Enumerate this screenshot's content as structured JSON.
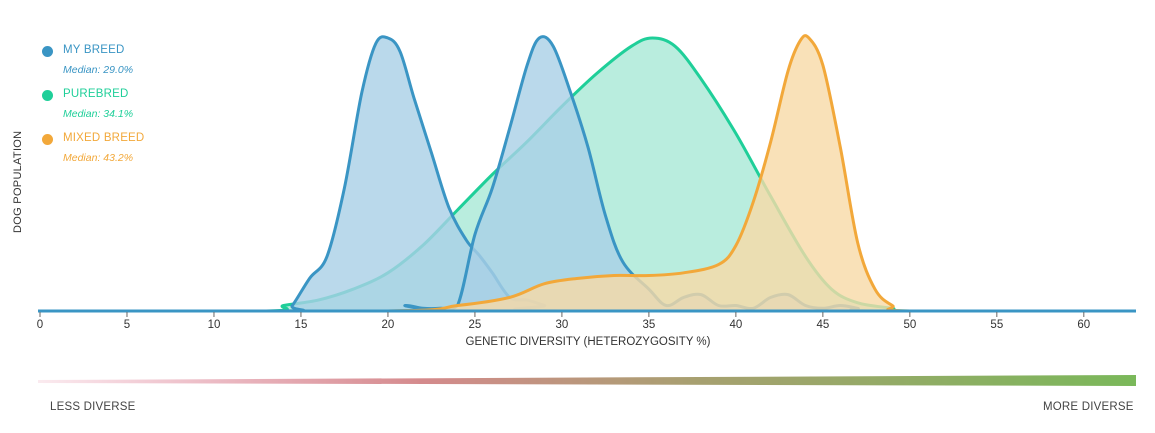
{
  "chart_data": {
    "type": "area",
    "title": "",
    "xlabel": "GENETIC DIVERSITY (HETEROZYGOSITY %)",
    "ylabel": "DOG POPULATION",
    "xlim": [
      0,
      63
    ],
    "x_ticks": [
      "0",
      "5",
      "10",
      "15",
      "20",
      "25",
      "30",
      "35",
      "40",
      "45",
      "50",
      "55",
      "60"
    ],
    "legend_position": "top-left",
    "series": [
      {
        "name": "PUREBRED",
        "median_label": "Median: 34.1%",
        "color": "#1fcf99",
        "fill": "#a8e9d6",
        "points": [
          [
            0,
            0
          ],
          [
            13,
            0
          ],
          [
            14,
            0.02
          ],
          [
            16,
            0.04
          ],
          [
            18,
            0.08
          ],
          [
            20,
            0.14
          ],
          [
            22,
            0.24
          ],
          [
            24,
            0.37
          ],
          [
            26,
            0.5
          ],
          [
            28,
            0.62
          ],
          [
            30,
            0.75
          ],
          [
            32,
            0.87
          ],
          [
            34,
            0.97
          ],
          [
            35.2,
            1.0
          ],
          [
            36.5,
            0.97
          ],
          [
            38,
            0.85
          ],
          [
            40,
            0.65
          ],
          [
            42,
            0.42
          ],
          [
            44,
            0.2
          ],
          [
            45.5,
            0.08
          ],
          [
            47,
            0.03
          ],
          [
            49,
            0.01
          ],
          [
            50,
            0
          ],
          [
            63,
            0
          ]
        ]
      },
      {
        "name": "MY BREED",
        "median_label": "Median: 29.0%",
        "color": "#3a95c4",
        "fill": "#a9cfe6",
        "points": [
          [
            0,
            0
          ],
          [
            14,
            0
          ],
          [
            14.5,
            0.02
          ],
          [
            15.5,
            0.12
          ],
          [
            16.5,
            0.2
          ],
          [
            17.5,
            0.45
          ],
          [
            18.5,
            0.8
          ],
          [
            19.3,
            0.98
          ],
          [
            20,
            1.0
          ],
          [
            20.7,
            0.95
          ],
          [
            21.5,
            0.78
          ],
          [
            22.5,
            0.58
          ],
          [
            23.5,
            0.38
          ],
          [
            24.5,
            0.26
          ],
          [
            25.3,
            0.2
          ],
          [
            26,
            0.14
          ],
          [
            27,
            0.05
          ],
          [
            28,
            0.04
          ],
          [
            29,
            0.02
          ],
          [
            30,
            0
          ],
          [
            63,
            0
          ]
        ]
      },
      {
        "name": "MY BREED",
        "median_label": "Median: 29.0%",
        "color": "#3a95c4",
        "fill": "#a9cfe6",
        "points": [
          [
            0,
            0
          ],
          [
            20,
            0
          ],
          [
            21,
            0.02
          ],
          [
            22,
            0.01
          ],
          [
            23,
            0.01
          ],
          [
            24,
            0.02
          ],
          [
            25,
            0.28
          ],
          [
            26,
            0.45
          ],
          [
            27,
            0.67
          ],
          [
            28,
            0.9
          ],
          [
            28.7,
            1.0
          ],
          [
            29.5,
            0.97
          ],
          [
            30.5,
            0.8
          ],
          [
            31.5,
            0.6
          ],
          [
            32.5,
            0.35
          ],
          [
            33.5,
            0.18
          ],
          [
            35,
            0.08
          ],
          [
            36,
            0.02
          ],
          [
            37,
            0.05
          ],
          [
            38,
            0.06
          ],
          [
            39,
            0.02
          ],
          [
            40,
            0.02
          ],
          [
            41,
            0.01
          ],
          [
            42,
            0.05
          ],
          [
            43,
            0.06
          ],
          [
            44,
            0.02
          ],
          [
            45,
            0.01
          ],
          [
            46,
            0.02
          ],
          [
            47,
            0.01
          ],
          [
            48,
            0
          ],
          [
            63,
            0
          ]
        ]
      },
      {
        "name": "MIXED BREED",
        "median_label": "Median: 43.2%",
        "color": "#f2a83a",
        "fill": "#f7d9a6",
        "points": [
          [
            0,
            0
          ],
          [
            20,
            0
          ],
          [
            24,
            0.02
          ],
          [
            27,
            0.05
          ],
          [
            29,
            0.1
          ],
          [
            31,
            0.12
          ],
          [
            33,
            0.13
          ],
          [
            35,
            0.13
          ],
          [
            37,
            0.14
          ],
          [
            39,
            0.17
          ],
          [
            40,
            0.24
          ],
          [
            41,
            0.4
          ],
          [
            42,
            0.62
          ],
          [
            43,
            0.88
          ],
          [
            43.7,
            0.99
          ],
          [
            44.2,
            1.0
          ],
          [
            45,
            0.9
          ],
          [
            46,
            0.6
          ],
          [
            47,
            0.25
          ],
          [
            48,
            0.08
          ],
          [
            49,
            0.02
          ],
          [
            50,
            0
          ],
          [
            63,
            0
          ]
        ]
      }
    ]
  },
  "legend": [
    {
      "label": "MY BREED",
      "median": "Median: 29.0%",
      "color": "#3a95c4"
    },
    {
      "label": "PUREBRED",
      "median": "Median: 34.1%",
      "color": "#1fcf99"
    },
    {
      "label": "MIXED BREED",
      "median": "Median: 43.2%",
      "color": "#f2a83a"
    }
  ],
  "diversity_scale": {
    "left_label": "LESS DIVERSE",
    "right_label": "MORE DIVERSE",
    "start_color": "#e07896",
    "end_color": "#7ab85a"
  }
}
